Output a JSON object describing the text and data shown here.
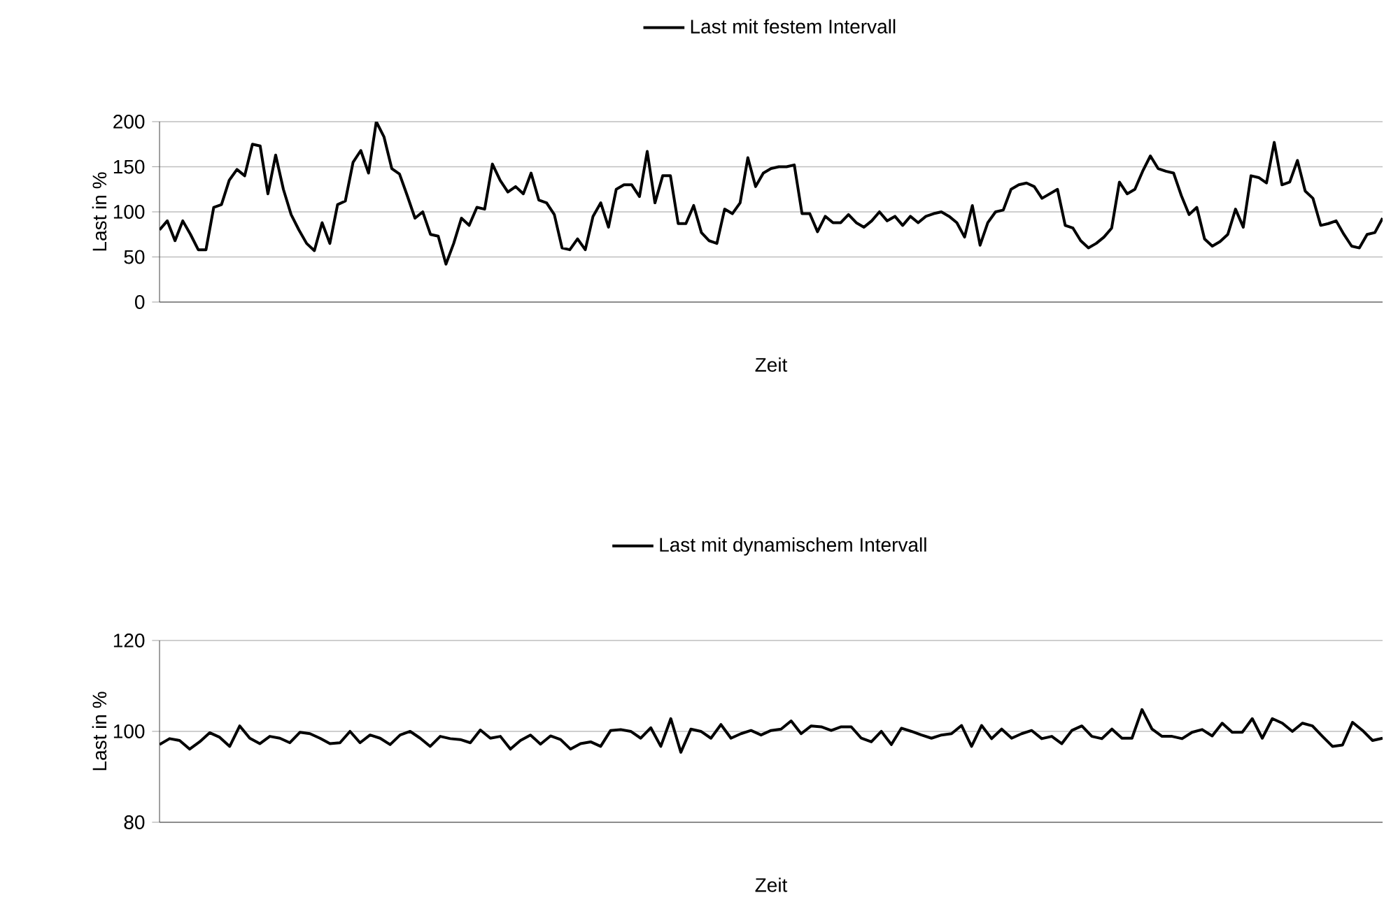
{
  "chart_data": [
    {
      "type": "line",
      "xlabel": "Zeit",
      "ylabel": "Last in %",
      "ylim": [
        0,
        200
      ],
      "yticks": [
        0,
        50,
        100,
        150,
        200
      ],
      "grid": "y",
      "legend": "top",
      "tick_labels": "y",
      "marker": "none",
      "line_style": "solid",
      "categories": [
        null,
        null,
        null,
        null,
        null,
        null,
        null,
        null,
        null,
        null,
        null,
        null,
        null,
        null,
        null,
        null,
        null,
        null,
        null,
        null,
        null,
        null,
        null,
        null,
        null,
        null,
        null,
        null,
        null,
        null,
        null,
        null,
        null,
        null,
        null,
        null,
        null,
        null,
        null,
        null,
        null,
        null,
        null,
        null,
        null,
        null,
        null,
        null,
        null,
        null,
        null,
        null,
        null,
        null,
        null,
        null,
        null,
        null,
        null,
        null,
        null,
        null,
        null,
        null,
        null,
        null,
        null,
        null,
        null,
        null,
        null,
        null,
        null,
        null,
        null,
        null,
        null,
        null,
        null,
        null,
        null,
        null,
        null,
        null,
        null,
        null,
        null,
        null,
        null,
        null,
        null,
        null,
        null,
        null,
        null,
        null,
        null,
        null,
        null,
        null,
        null,
        null,
        null,
        null,
        null,
        null,
        null,
        null,
        null,
        null,
        null,
        null,
        null,
        null,
        null,
        null,
        null,
        null,
        null,
        null,
        null,
        null,
        null,
        null,
        null,
        null,
        null,
        null,
        null,
        null,
        null,
        null,
        null,
        null,
        null,
        null,
        null,
        null,
        null,
        null,
        null,
        null,
        null,
        null,
        null,
        null,
        null,
        null,
        null,
        null,
        null,
        null,
        null,
        null,
        null,
        null,
        null,
        null,
        null
      ],
      "series": [
        {
          "name": "Last mit festem Intervall",
          "color": "#000000",
          "values": [
            80,
            90,
            68,
            90,
            75,
            58,
            58,
            105,
            108,
            135,
            147,
            140,
            175,
            173,
            120,
            163,
            125,
            97,
            80,
            65,
            57,
            88,
            65,
            108,
            112,
            155,
            168,
            143,
            200,
            183,
            148,
            142,
            118,
            93,
            100,
            75,
            73,
            42,
            65,
            93,
            85,
            105,
            103,
            153,
            135,
            122,
            128,
            120,
            143,
            113,
            110,
            97,
            60,
            58,
            70,
            58,
            95,
            110,
            83,
            125,
            130,
            130,
            117,
            167,
            110,
            140,
            140,
            87,
            87,
            107,
            77,
            68,
            65,
            103,
            98,
            110,
            160,
            128,
            143,
            148,
            150,
            150,
            152,
            98,
            98,
            78,
            95,
            88,
            88,
            97,
            88,
            83,
            90,
            100,
            90,
            95,
            85,
            95,
            88,
            95,
            98,
            100,
            95,
            88,
            72,
            107,
            63,
            88,
            100,
            102,
            125,
            130,
            132,
            128,
            115,
            120,
            125,
            85,
            82,
            68,
            60,
            65,
            72,
            82,
            133,
            120,
            125,
            145,
            162,
            148,
            145,
            143,
            118,
            97,
            105,
            70,
            62,
            67,
            75,
            103,
            83,
            140,
            138,
            132,
            177,
            130,
            133,
            157,
            123,
            115,
            85,
            87,
            90,
            75,
            62,
            60,
            75,
            77,
            93
          ]
        }
      ]
    },
    {
      "type": "line",
      "xlabel": "Zeit",
      "ylabel": "Last in %",
      "ylim": [
        80,
        120
      ],
      "yticks": [
        80,
        100,
        120
      ],
      "grid": "y",
      "legend": "top",
      "tick_labels": "y",
      "marker": "none",
      "line_style": "solid",
      "categories": [
        null,
        null,
        null,
        null,
        null,
        null,
        null,
        null,
        null,
        null,
        null,
        null,
        null,
        null,
        null,
        null,
        null,
        null,
        null,
        null,
        null,
        null,
        null,
        null,
        null,
        null,
        null,
        null,
        null,
        null,
        null,
        null,
        null,
        null,
        null,
        null,
        null,
        null,
        null,
        null,
        null,
        null,
        null,
        null,
        null,
        null,
        null,
        null,
        null,
        null,
        null,
        null,
        null,
        null,
        null,
        null,
        null,
        null,
        null,
        null,
        null,
        null,
        null,
        null,
        null,
        null,
        null,
        null,
        null,
        null,
        null,
        null,
        null,
        null,
        null,
        null,
        null,
        null,
        null,
        null,
        null,
        null,
        null,
        null,
        null,
        null,
        null,
        null,
        null,
        null,
        null,
        null,
        null,
        null,
        null,
        null,
        null,
        null,
        null,
        null,
        null,
        null,
        null,
        null,
        null,
        null,
        null,
        null,
        null,
        null,
        null,
        null,
        null,
        null,
        null,
        null,
        null,
        null,
        null,
        null,
        null,
        null,
        null
      ],
      "series": [
        {
          "name": "Last mit dynamischem Intervall",
          "color": "#000000",
          "values": [
            97.1,
            98.4,
            98,
            96.1,
            97.7,
            99.7,
            98.7,
            96.7,
            101.2,
            98.5,
            97.3,
            98.9,
            98.5,
            97.5,
            99.8,
            99.5,
            98.5,
            97.3,
            97.5,
            100,
            97.5,
            99.2,
            98.5,
            97.1,
            99.2,
            100,
            98.5,
            96.7,
            98.9,
            98.4,
            98.2,
            97.5,
            100.3,
            98.5,
            98.9,
            96.1,
            98,
            99.2,
            97.2,
            99,
            98.2,
            96.1,
            97.3,
            97.7,
            96.7,
            100.2,
            100.4,
            100,
            98.5,
            100.8,
            96.7,
            102.8,
            95.4,
            100.5,
            100,
            98.5,
            101.5,
            98.5,
            99.5,
            100.2,
            99.2,
            100.2,
            100.5,
            102.3,
            99.5,
            101.2,
            101,
            100.2,
            101,
            101,
            98.5,
            97.7,
            100,
            97.1,
            100.7,
            100,
            99.2,
            98.5,
            99.2,
            99.5,
            101.3,
            96.7,
            101.3,
            98.4,
            100.5,
            98.5,
            99.5,
            100.2,
            98.4,
            98.9,
            97.3,
            100.2,
            101.2,
            98.9,
            98.4,
            100.5,
            98.5,
            98.5,
            104.8,
            100.5,
            98.9,
            98.9,
            98.4,
            99.8,
            100.4,
            99,
            101.8,
            99.8,
            99.8,
            102.8,
            98.5,
            102.8,
            101.8,
            100,
            101.8,
            101.2,
            98.9,
            96.7,
            97,
            102,
            100.2,
            98,
            98.5
          ]
        }
      ]
    }
  ]
}
